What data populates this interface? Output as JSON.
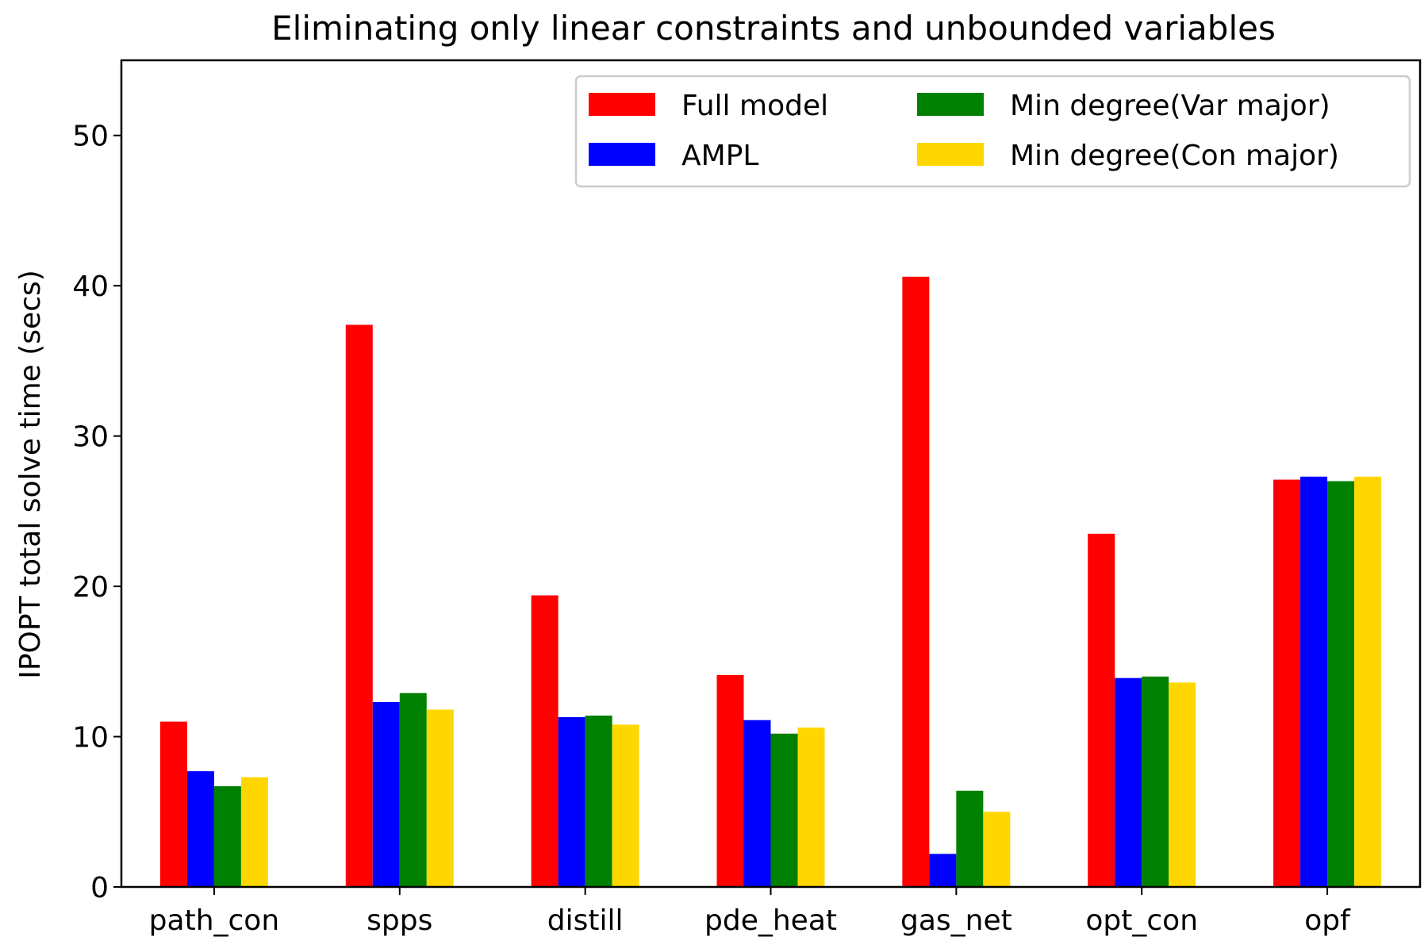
{
  "chart_data": {
    "type": "bar",
    "title": "Eliminating only linear constraints and unbounded variables",
    "xlabel": "",
    "ylabel": "IPOPT total solve time (secs)",
    "ylim": [
      0,
      55
    ],
    "yticks": [
      0,
      10,
      20,
      30,
      40,
      50
    ],
    "categories": [
      "path_con",
      "spps",
      "distill",
      "pde_heat",
      "gas_net",
      "opt_con",
      "opf"
    ],
    "series": [
      {
        "name": "Full model",
        "color": "#ff0000",
        "values": [
          11.0,
          37.4,
          19.4,
          14.1,
          40.6,
          23.5,
          27.1
        ]
      },
      {
        "name": "AMPL",
        "color": "#0000ff",
        "values": [
          7.7,
          12.3,
          11.3,
          11.1,
          2.2,
          13.9,
          27.3
        ]
      },
      {
        "name": "Min degree(Var major)",
        "color": "#008000",
        "values": [
          6.7,
          12.9,
          11.4,
          10.2,
          6.4,
          14.0,
          27.0
        ]
      },
      {
        "name": "Min degree(Con major)",
        "color": "#ffd700",
        "values": [
          7.3,
          11.8,
          10.8,
          10.6,
          5.0,
          13.6,
          27.3
        ]
      }
    ],
    "legend": "top-right",
    "grid": false
  }
}
